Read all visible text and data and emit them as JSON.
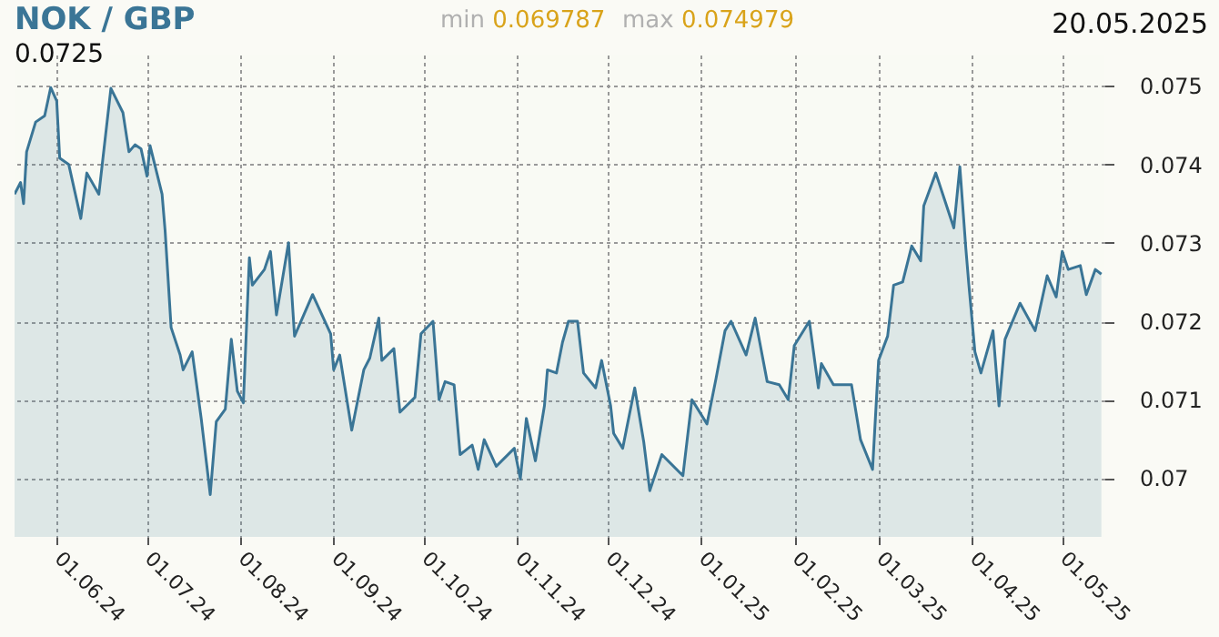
{
  "chart_data": {
    "type": "area",
    "title": "NOK / GBP",
    "annotations": [
      "min 0.069787",
      "max 0.074979",
      "20.05.2025",
      "0.0725"
    ],
    "xlim": [
      "2024-05-18",
      "2025-05-15"
    ],
    "xticks": [
      {
        "value": "2024-06-01",
        "label": "01.06.24"
      },
      {
        "value": "2024-07-01",
        "label": "01.07.24"
      },
      {
        "value": "2024-08-01",
        "label": "01.08.24"
      },
      {
        "value": "2024-09-01",
        "label": "01.09.24"
      },
      {
        "value": "2024-10-01",
        "label": "01.10.24"
      },
      {
        "value": "2024-11-01",
        "label": "01.11.24"
      },
      {
        "value": "2024-12-01",
        "label": "01.12.24"
      },
      {
        "value": "2025-01-01",
        "label": "01.01.25"
      },
      {
        "value": "2025-02-01",
        "label": "01.02.25"
      },
      {
        "value": "2025-03-01",
        "label": "01.03.25"
      },
      {
        "value": "2025-04-01",
        "label": "01.04.25"
      },
      {
        "value": "2025-05-01",
        "label": "01.05.25"
      }
    ],
    "ylim": [
      0.06925,
      0.0754
    ],
    "yticks": [
      0.07,
      0.071,
      0.072,
      0.073,
      0.074,
      0.075
    ],
    "grid": true,
    "x": [
      "2024-05-18",
      "2024-05-20",
      "2024-05-21",
      "2024-05-22",
      "2024-05-25",
      "2024-05-28",
      "2024-05-30",
      "2024-06-01",
      "2024-06-02",
      "2024-06-05",
      "2024-06-09",
      "2024-06-11",
      "2024-06-15",
      "2024-06-19",
      "2024-06-23",
      "2024-06-25",
      "2024-06-27",
      "2024-06-29",
      "2024-07-01",
      "2024-07-02",
      "2024-07-06",
      "2024-07-07",
      "2024-07-09",
      "2024-07-12",
      "2024-07-13",
      "2024-07-16",
      "2024-07-19",
      "2024-07-22",
      "2024-07-24",
      "2024-07-27",
      "2024-07-29",
      "2024-07-31",
      "2024-08-02",
      "2024-08-04",
      "2024-08-05",
      "2024-08-09",
      "2024-08-11",
      "2024-08-13",
      "2024-08-17",
      "2024-08-19",
      "2024-08-25",
      "2024-08-31",
      "2024-09-01",
      "2024-09-03",
      "2024-09-07",
      "2024-09-11",
      "2024-09-13",
      "2024-09-16",
      "2024-09-17",
      "2024-09-21",
      "2024-09-23",
      "2024-09-28",
      "2024-09-30",
      "2024-10-04",
      "2024-10-06",
      "2024-10-08",
      "2024-10-11",
      "2024-10-13",
      "2024-10-17",
      "2024-10-19",
      "2024-10-21",
      "2024-10-25",
      "2024-10-31",
      "2024-11-02",
      "2024-11-04",
      "2024-11-07",
      "2024-11-10",
      "2024-11-11",
      "2024-11-14",
      "2024-11-16",
      "2024-11-18",
      "2024-11-21",
      "2024-11-23",
      "2024-11-27",
      "2024-11-29",
      "2024-12-02",
      "2024-12-03",
      "2024-12-06",
      "2024-12-10",
      "2024-12-13",
      "2024-12-15",
      "2024-12-19",
      "2024-12-26",
      "2024-12-29",
      "2025-01-03",
      "2025-01-06",
      "2025-01-09",
      "2025-01-11",
      "2025-01-16",
      "2025-01-19",
      "2025-01-23",
      "2025-01-27",
      "2025-01-30",
      "2025-02-01",
      "2025-02-06",
      "2025-02-09",
      "2025-02-10",
      "2025-02-14",
      "2025-02-20",
      "2025-02-23",
      "2025-02-27",
      "2025-03-01",
      "2025-03-04",
      "2025-03-06",
      "2025-03-09",
      "2025-03-12",
      "2025-03-15",
      "2025-03-16",
      "2025-03-20",
      "2025-03-23",
      "2025-03-26",
      "2025-03-28",
      "2025-03-30",
      "2025-03-31",
      "2025-04-02",
      "2025-04-04",
      "2025-04-08",
      "2025-04-10",
      "2025-04-12",
      "2025-04-17",
      "2025-04-22",
      "2025-04-26",
      "2025-04-29",
      "2025-05-01",
      "2025-05-03",
      "2025-05-07",
      "2025-05-09",
      "2025-05-12",
      "2025-05-14"
    ],
    "series": [
      {
        "color": "#3a7596",
        "values": [
          0.07362,
          0.07377,
          0.0735,
          0.07416,
          0.07454,
          0.07462,
          0.07498,
          0.07481,
          0.07408,
          0.074,
          0.07331,
          0.07389,
          0.07362,
          0.07497,
          0.07466,
          0.07416,
          0.07425,
          0.0742,
          0.07385,
          0.07424,
          0.07362,
          0.07316,
          0.07192,
          0.07157,
          0.07138,
          0.07161,
          0.07076,
          0.06979,
          0.07072,
          0.07088,
          0.07177,
          0.07111,
          0.07096,
          0.07281,
          0.07246,
          0.07266,
          0.07289,
          0.07208,
          0.073,
          0.07181,
          0.07234,
          0.07184,
          0.07138,
          0.07157,
          0.07061,
          0.07138,
          0.07153,
          0.07204,
          0.0715,
          0.07165,
          0.07084,
          0.07103,
          0.07184,
          0.072,
          0.071,
          0.07123,
          0.07119,
          0.0703,
          0.07042,
          0.07011,
          0.07049,
          0.07015,
          0.07038,
          0.06999,
          0.07076,
          0.07022,
          0.07092,
          0.07138,
          0.07134,
          0.07173,
          0.072,
          0.072,
          0.07134,
          0.07115,
          0.0715,
          0.07092,
          0.07057,
          0.07038,
          0.07115,
          0.07046,
          0.06984,
          0.0703,
          0.07003,
          0.071,
          0.07069,
          0.07127,
          0.07188,
          0.072,
          0.07157,
          0.07204,
          0.07123,
          0.07119,
          0.071,
          0.07169,
          0.072,
          0.07115,
          0.07146,
          0.07119,
          0.07119,
          0.07049,
          0.07011,
          0.0715,
          0.07181,
          0.07246,
          0.0725,
          0.07296,
          0.07277,
          0.07347,
          0.07389,
          0.07354,
          0.07319,
          0.07397,
          0.07292,
          0.07246,
          0.07161,
          0.07134,
          0.07188,
          0.07092,
          0.07177,
          0.07223,
          0.07188,
          0.07258,
          0.07231,
          0.07289,
          0.07266,
          0.07271,
          0.07234,
          0.07266,
          0.0726
        ]
      }
    ]
  }
}
